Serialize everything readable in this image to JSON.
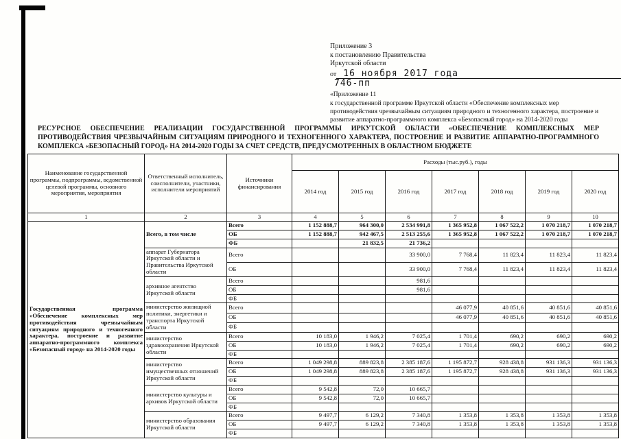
{
  "header": {
    "line1": "Приложение 3",
    "line2": "к постановлению Правительства",
    "line3": "Иркутской области",
    "date_prefix": "от",
    "date_value": "16 ноября 2017 года",
    "number_value": "746-пп",
    "appendix": [
      "«Приложение 11",
      "к государственной программе Иркутской области «Обеспечение комплексных мер",
      "противодействия чрезвычайным ситуациям природного и техногенного характера, построение и",
      "развитие аппаратно-программного комплекса «Безопасный город» на 2014-2020 годы"
    ]
  },
  "title": "РЕСУРСНОЕ ОБЕСПЕЧЕНИЕ РЕАЛИЗАЦИИ ГОСУДАРСТВЕННОЙ ПРОГРАММЫ ИРКУТСКОЙ ОБЛАСТИ «ОБЕСПЕЧЕНИЕ КОМПЛЕКСНЫХ МЕР ПРОТИВОДЕЙСТВИЯ ЧРЕЗВЫЧАЙНЫМ СИТУАЦИЯМ ПРИРОДНОГО И ТЕХНОГЕННОГО ХАРАКТЕРА, ПОСТРОЕНИЕ И РАЗВИТИЕ АППАРАТНО-ПРОГРАММНОГО КОМПЛЕКСА «БЕЗОПАСНЫЙ ГОРОД» НА 2014-2020 ГОДЫ ЗА СЧЕТ СРЕДСТВ, ПРЕДУСМОТРЕННЫХ В ОБЛАСТНОМ БЮДЖЕТЕ",
  "table": {
    "headers": {
      "program": "Наименование государственной программы, подпрограммы, ведомственной целевой программы, основного мероприятия, мероприятия",
      "executor": "Ответственный исполнитель, соисполнители, участники, исполнители мероприятий",
      "source": "Источники финансирования",
      "expenses": "Расходы (тыс.руб.), годы"
    },
    "years": [
      "2014 год",
      "2015 год",
      "2016 год",
      "2017 год",
      "2018 год",
      "2019 год",
      "2020 год"
    ],
    "col_numbers": [
      "1",
      "2",
      "3",
      "4",
      "5",
      "6",
      "7",
      "8",
      "9",
      "10"
    ],
    "program_name": "Государственная программа «Обеспечение комплексных мер противодействия чрезвычайным ситуациям природного и техногенного характера, построение и развитие аппаратно-программного комплекса «Безопасный город» на 2014-2020 годы",
    "body": [
      {
        "executor": "Всего, в том числе",
        "bold": true,
        "sources": [
          {
            "label": "Всего",
            "values": [
              "1 152 888,7",
              "964 300,0",
              "2 534 991,8",
              "1 365 952,8",
              "1 067 522,2",
              "1 070 218,7",
              "1 070 218,7"
            ]
          },
          {
            "label": "ОБ",
            "values": [
              "1 152 888,7",
              "942 467,5",
              "2 513 255,6",
              "1 365 952,8",
              "1 067 522,2",
              "1 070 218,7",
              "1 070 218,7"
            ]
          },
          {
            "label": "ФБ",
            "values": [
              "",
              "21 832,5",
              "21 736,2",
              "",
              "",
              "",
              ""
            ]
          }
        ]
      },
      {
        "executor": "аппарат Губернатора Иркутской области и Правительства Иркутской области",
        "bold": false,
        "sources": [
          {
            "label": "Всего",
            "values": [
              "",
              "",
              "33 900,0",
              "7 768,4",
              "11 823,4",
              "11 823,4",
              "11 823,4"
            ]
          },
          {
            "label": "ОБ",
            "values": [
              "",
              "",
              "33 900,0",
              "7 768,4",
              "11 823,4",
              "11 823,4",
              "11 823,4"
            ]
          }
        ]
      },
      {
        "executor": "архивное агентство Иркутской области",
        "bold": false,
        "sources": [
          {
            "label": "Всего",
            "values": [
              "",
              "",
              "981,6",
              "",
              "",
              "",
              ""
            ]
          },
          {
            "label": "ОБ",
            "values": [
              "",
              "",
              "981,6",
              "",
              "",
              "",
              ""
            ]
          },
          {
            "label": "ФБ",
            "values": [
              "",
              "",
              "",
              "",
              "",
              "",
              ""
            ]
          }
        ]
      },
      {
        "executor": "министерство жилищной политики, энергетики и транспорта Иркутской области",
        "bold": false,
        "sources": [
          {
            "label": "Всего",
            "values": [
              "",
              "",
              "",
              "46 077,9",
              "40 851,6",
              "40 851,6",
              "40 851,6"
            ]
          },
          {
            "label": "ОБ",
            "values": [
              "",
              "",
              "",
              "46 077,9",
              "40 851,6",
              "40 851,6",
              "40 851,6"
            ]
          },
          {
            "label": "ФБ",
            "values": [
              "",
              "",
              "",
              "",
              "",
              "",
              ""
            ]
          }
        ]
      },
      {
        "executor": "министерство здравоохранения Иркутской области",
        "bold": false,
        "sources": [
          {
            "label": "Всего",
            "values": [
              "10 183,0",
              "1 946,2",
              "7 025,4",
              "1 701,4",
              "690,2",
              "690,2",
              "690,2"
            ]
          },
          {
            "label": "ОБ",
            "values": [
              "10 183,0",
              "1 946,2",
              "7 025,4",
              "1 701,4",
              "690,2",
              "690,2",
              "690,2"
            ]
          },
          {
            "label": "ФБ",
            "values": [
              "",
              "",
              "",
              "",
              "",
              "",
              ""
            ]
          }
        ]
      },
      {
        "executor": "министерство имущественных отношений Иркутской области",
        "bold": false,
        "sources": [
          {
            "label": "Всего",
            "values": [
              "1 049 298,8",
              "889 823,8",
              "2 385 187,6",
              "1 195 872,7",
              "928 438,8",
              "931 136,3",
              "931 136,3"
            ]
          },
          {
            "label": "ОБ",
            "values": [
              "1 049 298,8",
              "889 823,8",
              "2 385 187,6",
              "1 195 872,7",
              "928 438,8",
              "931 136,3",
              "931 136,3"
            ]
          },
          {
            "label": "ФБ",
            "values": [
              "",
              "",
              "",
              "",
              "",
              "",
              ""
            ]
          }
        ]
      },
      {
        "executor": "министерство культуры и архивов Иркутской области",
        "bold": false,
        "sources": [
          {
            "label": "Всего",
            "values": [
              "9 542,8",
              "72,0",
              "10 665,7",
              "",
              "",
              "",
              ""
            ]
          },
          {
            "label": "ОБ",
            "values": [
              "9 542,8",
              "72,0",
              "10 665,7",
              "",
              "",
              "",
              ""
            ]
          },
          {
            "label": "ФБ",
            "values": [
              "",
              "",
              "",
              "",
              "",
              "",
              ""
            ]
          }
        ]
      },
      {
        "executor": "министерство образования Иркутской области",
        "bold": false,
        "sources": [
          {
            "label": "Всего",
            "values": [
              "9 497,7",
              "6 129,2",
              "7 340,8",
              "1 353,8",
              "1 353,8",
              "1 353,8",
              "1 353,8"
            ]
          },
          {
            "label": "ОБ",
            "values": [
              "9 497,7",
              "6 129,2",
              "7 340,8",
              "1 353,8",
              "1 353,8",
              "1 353,8",
              "1 353,8"
            ]
          },
          {
            "label": "ФБ",
            "values": [
              "",
              "",
              "",
              "",
              "",
              "",
              ""
            ]
          }
        ]
      }
    ]
  }
}
